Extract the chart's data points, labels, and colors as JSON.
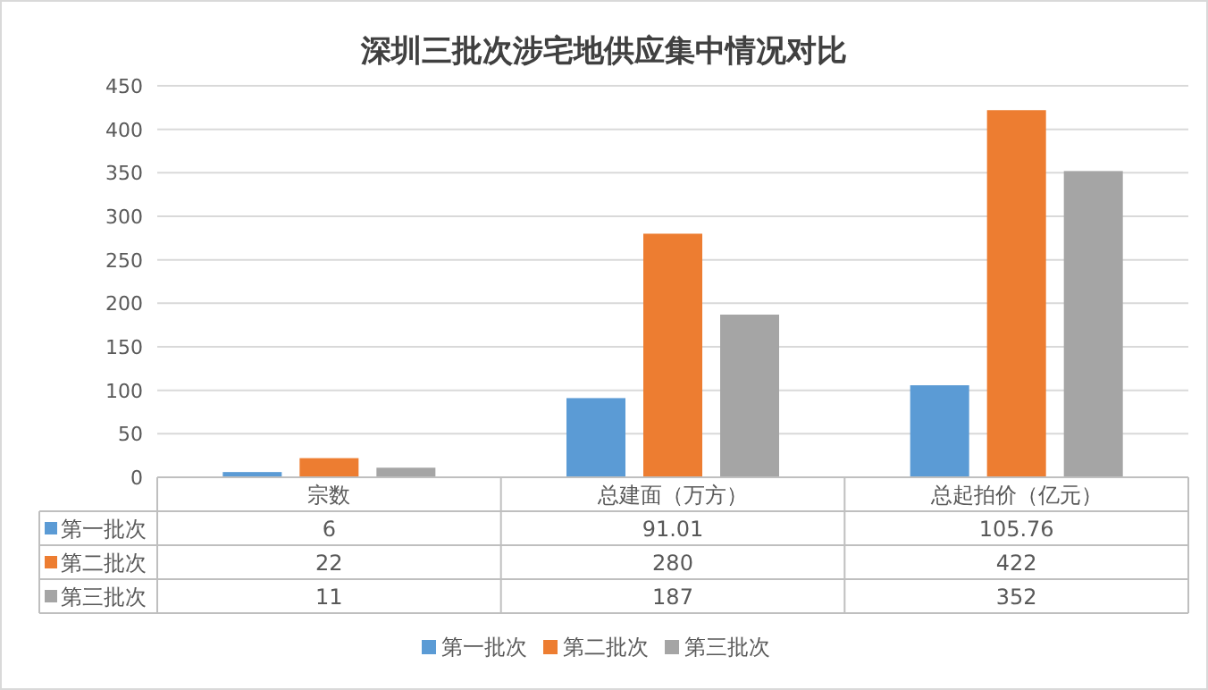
{
  "chart_data": {
    "type": "bar",
    "title": "深圳三批次涉宅地供应集中情况对比",
    "categories": [
      "宗数",
      "总建面（万方）",
      "总起拍价（亿元）"
    ],
    "series": [
      {
        "name": "第一批次",
        "color": "#5b9bd5",
        "values": [
          6,
          91.01,
          105.76
        ]
      },
      {
        "name": "第二批次",
        "color": "#ed7d31",
        "values": [
          22,
          280,
          422
        ]
      },
      {
        "name": "第三批次",
        "color": "#a5a5a5",
        "values": [
          11,
          187,
          352
        ]
      }
    ],
    "ylim": [
      0,
      450
    ],
    "yticks": [
      0,
      50,
      100,
      150,
      200,
      250,
      300,
      350,
      400,
      450
    ],
    "grid": "y",
    "legend": "bottom",
    "data_labels": true
  }
}
